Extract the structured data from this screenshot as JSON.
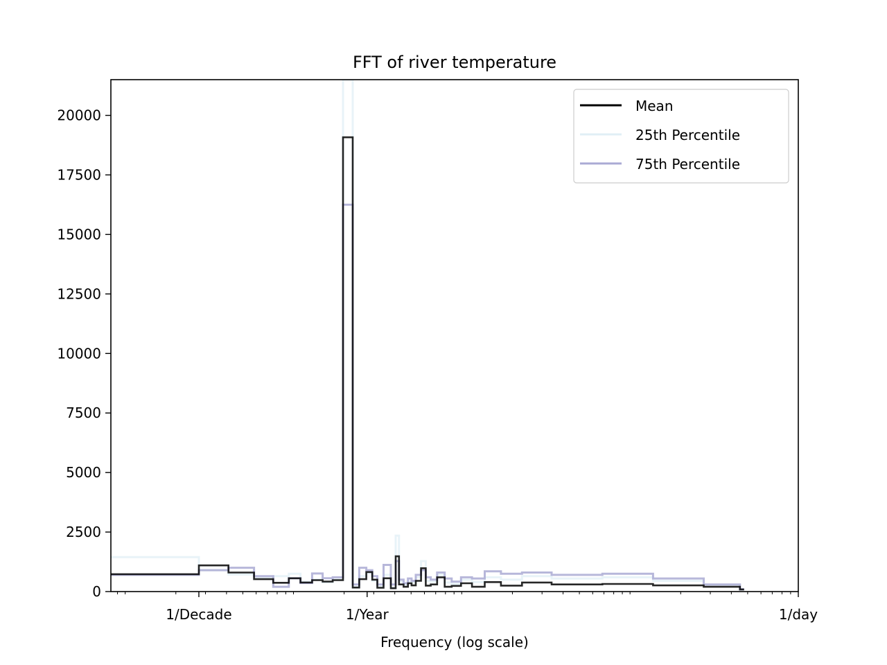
{
  "chart_data": {
    "type": "line",
    "title": "FFT of river temperature",
    "xlabel": "Frequency (log scale)",
    "ylabel": "",
    "x_scale": "log",
    "x_unit": "cycles per day",
    "xlim": [
      8.22e-05,
      1.0
    ],
    "ylim": [
      0,
      21500
    ],
    "x_ticks": [
      {
        "value": 0.000274,
        "label": "1/Decade"
      },
      {
        "value": 0.00274,
        "label": "1/Year"
      },
      {
        "value": 1.0,
        "label": "1/day"
      }
    ],
    "y_ticks": [
      0,
      2500,
      5000,
      7500,
      10000,
      12500,
      15000,
      17500,
      20000
    ],
    "legend": {
      "position": "top-right",
      "entries": [
        "Mean",
        "25th Percentile",
        "75th Percentile"
      ]
    },
    "grid": false,
    "colors": {
      "Mean": "#000000",
      "25th Percentile": "#e0eff5",
      "75th Percentile": "#aaaad4",
      "overlap": "#2b3160"
    },
    "series": [
      {
        "name": "Mean",
        "x": [
          8.22e-05,
          0.000274,
          0.000411,
          0.000583,
          0.000758,
          0.000938,
          0.0011,
          0.00129,
          0.00149,
          0.00171,
          0.00197,
          0.00225,
          0.00246,
          0.00271,
          0.00294,
          0.00315,
          0.00343,
          0.00379,
          0.00405,
          0.00424,
          0.00451,
          0.00479,
          0.00503,
          0.00533,
          0.00573,
          0.00611,
          0.00654,
          0.00714,
          0.00792,
          0.00871,
          0.0099,
          0.0115,
          0.0137,
          0.0171,
          0.0228,
          0.0342,
          0.0685,
          0.137,
          0.274,
          0.45
        ],
        "values": [
          730,
          1100,
          800,
          520,
          370,
          560,
          380,
          480,
          420,
          480,
          19080,
          170,
          520,
          820,
          500,
          160,
          560,
          140,
          1480,
          300,
          200,
          350,
          260,
          450,
          980,
          250,
          300,
          600,
          200,
          240,
          350,
          200,
          400,
          250,
          380,
          300,
          320,
          260,
          200,
          90
        ]
      },
      {
        "name": "25th Percentile",
        "x": [
          8.22e-05,
          0.000274,
          0.000411,
          0.000583,
          0.000758,
          0.000938,
          0.0011,
          0.00129,
          0.00149,
          0.00171,
          0.00197,
          0.00225,
          0.00246,
          0.00271,
          0.00294,
          0.00315,
          0.00343,
          0.00379,
          0.00405,
          0.00424,
          0.00451,
          0.00479,
          0.00503,
          0.00533,
          0.00573,
          0.00611,
          0.00654,
          0.00714,
          0.00792,
          0.00871,
          0.0099,
          0.0115,
          0.0137,
          0.0171,
          0.0228,
          0.0342,
          0.0685,
          0.137,
          0.274,
          0.45
        ],
        "values": [
          1450,
          900,
          720,
          560,
          650,
          750,
          420,
          500,
          380,
          500,
          21500,
          190,
          650,
          780,
          450,
          200,
          700,
          160,
          2350,
          420,
          300,
          400,
          380,
          600,
          1280,
          450,
          420,
          700,
          380,
          320,
          500,
          400,
          600,
          500,
          650,
          550,
          600,
          450,
          280,
          80
        ]
      },
      {
        "name": "75th Percentile",
        "x": [
          8.22e-05,
          0.000274,
          0.000411,
          0.000583,
          0.000758,
          0.000938,
          0.0011,
          0.00129,
          0.00149,
          0.00171,
          0.00197,
          0.00225,
          0.00246,
          0.00271,
          0.00294,
          0.00315,
          0.00343,
          0.00379,
          0.00405,
          0.00424,
          0.00451,
          0.00479,
          0.00503,
          0.00533,
          0.00573,
          0.00611,
          0.00654,
          0.00714,
          0.00792,
          0.00871,
          0.0099,
          0.0115,
          0.0137,
          0.0171,
          0.0228,
          0.0342,
          0.0685,
          0.137,
          0.274,
          0.45
        ],
        "values": [
          700,
          900,
          1000,
          650,
          200,
          560,
          360,
          760,
          560,
          600,
          16250,
          300,
          1000,
          900,
          650,
          300,
          1120,
          300,
          1280,
          500,
          350,
          550,
          450,
          700,
          900,
          600,
          500,
          800,
          550,
          420,
          600,
          550,
          850,
          750,
          800,
          700,
          750,
          550,
          300,
          100
        ]
      }
    ]
  }
}
